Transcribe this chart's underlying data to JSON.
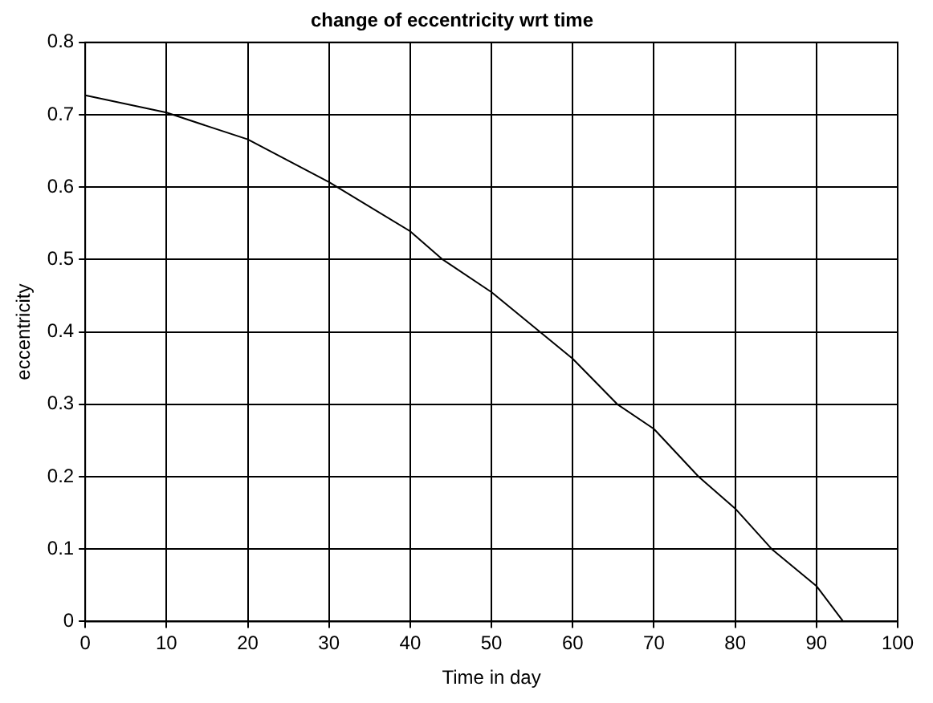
{
  "chart_data": {
    "type": "line",
    "title": "change of eccentricity wrt time",
    "xlabel": "Time in day",
    "ylabel": "eccentricity",
    "x": [
      0,
      10,
      20,
      30,
      40,
      44,
      50,
      60,
      65.5,
      70,
      75.5,
      80,
      84.5,
      90,
      93.3
    ],
    "series": [
      {
        "color": "#000000",
        "values": [
          0.727,
          0.703,
          0.666,
          0.607,
          0.539,
          0.5,
          0.455,
          0.363,
          0.3,
          0.266,
          0.2,
          0.156,
          0.1,
          0.049,
          0
        ]
      }
    ],
    "xlim": [
      0,
      100
    ],
    "xticks": [
      0,
      10,
      20,
      30,
      40,
      50,
      60,
      70,
      80,
      90,
      100
    ],
    "ylim": [
      0,
      0.8
    ],
    "yticks": [
      0,
      0.1,
      0.2,
      0.3,
      0.4,
      0.5,
      0.6,
      0.7,
      0.8
    ],
    "grid": true,
    "marker": "none",
    "line_style": "solid"
  }
}
